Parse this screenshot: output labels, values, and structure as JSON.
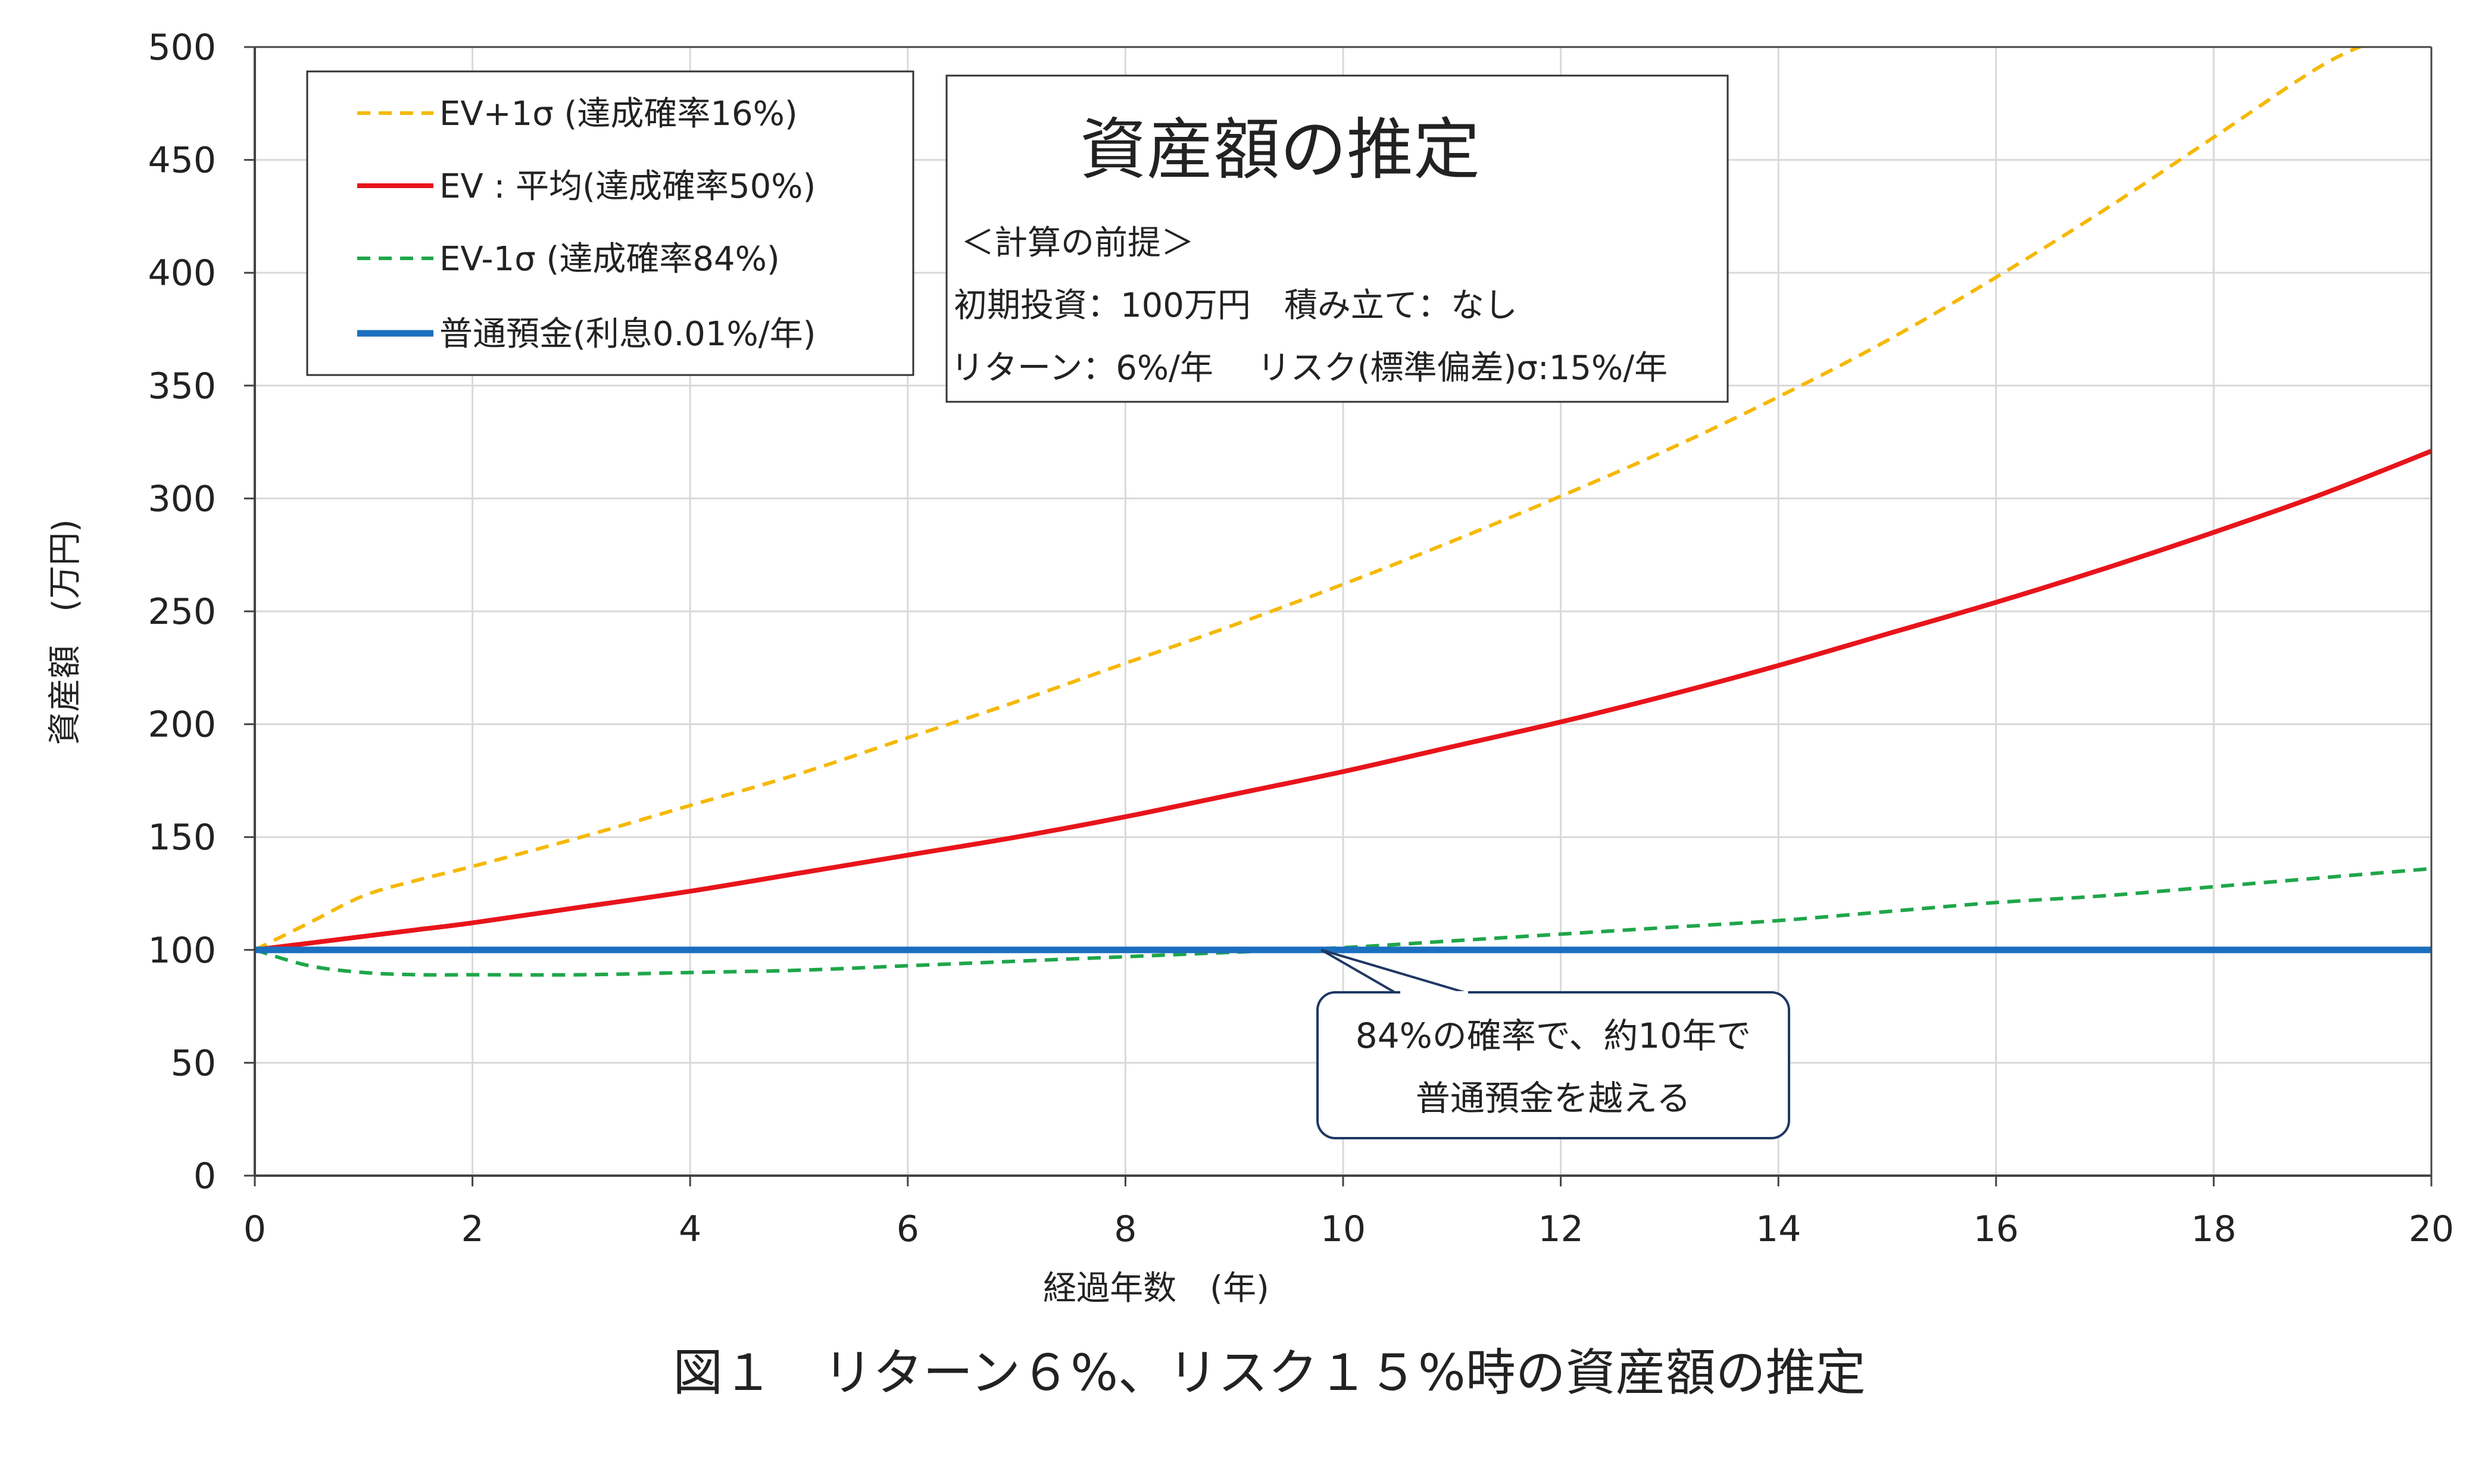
{
  "chart_data": {
    "type": "line",
    "title": "図１　リターン６%、リスク１５%時の資産額の推定",
    "xlabel": "経過年数　(年)",
    "ylabel": "資産額　(万円)",
    "xlim": [
      0,
      20
    ],
    "ylim": [
      0,
      500
    ],
    "x_ticks": [
      "0",
      "2",
      "4",
      "6",
      "8",
      "10",
      "12",
      "14",
      "16",
      "18",
      "20"
    ],
    "y_ticks": [
      "0",
      "50",
      "100",
      "150",
      "200",
      "250",
      "300",
      "350",
      "400",
      "450",
      "500"
    ],
    "grid": true,
    "legend_position": "top-left",
    "x": [
      0,
      0.5,
      1,
      1.5,
      2,
      3,
      4,
      5,
      6,
      7,
      8,
      9,
      10,
      11,
      12,
      13,
      14,
      15,
      16,
      17,
      18,
      19,
      19.6,
      20
    ],
    "series": [
      {
        "name": "EV+1σ (達成確率16%)",
        "color": "#f5b800",
        "dash": true,
        "values": [
          100,
          112,
          124,
          131,
          137,
          150,
          164,
          178,
          194,
          210,
          227,
          244,
          262,
          281,
          301,
          322,
          345,
          370,
          398,
          428,
          460,
          492,
          505,
          null
        ]
      },
      {
        "name": "EV : 平均(達成確率50%)",
        "color": "#e8141b",
        "dash": false,
        "values": [
          100,
          103,
          106,
          109,
          112,
          119,
          126,
          134,
          142,
          150,
          159,
          169,
          179,
          190,
          201,
          213,
          226,
          240,
          254,
          269,
          285,
          302,
          null,
          321
        ]
      },
      {
        "name": "EV-1σ (達成確率84%)",
        "color": "#1fa64a",
        "dash": true,
        "values": [
          100,
          93,
          90,
          89,
          89,
          89,
          90,
          91,
          93,
          95,
          97,
          99,
          101,
          104,
          107,
          110,
          113,
          117,
          121,
          124,
          128,
          132,
          null,
          136
        ]
      },
      {
        "name": "普通預金(利息0.01%/年)",
        "color": "#1b6fbf",
        "dash": false,
        "values": [
          100,
          100,
          100,
          100,
          100,
          100,
          100,
          100,
          100,
          100,
          100,
          100,
          100,
          100,
          100,
          100,
          100,
          100,
          100,
          100,
          100,
          100,
          null,
          100
        ]
      }
    ],
    "info_box": {
      "title": "資産額の推定",
      "lines": [
        "＜計算の前提＞",
        "初期投資：100万円　積み立て：なし",
        "リターン：6%/年　 リスク(標準偏差)σ:15%/年"
      ]
    },
    "callout": {
      "lines": [
        "84%の確率で、約10年で",
        "普通預金を越える"
      ],
      "target_x": 9.8,
      "target_y": 100
    }
  }
}
